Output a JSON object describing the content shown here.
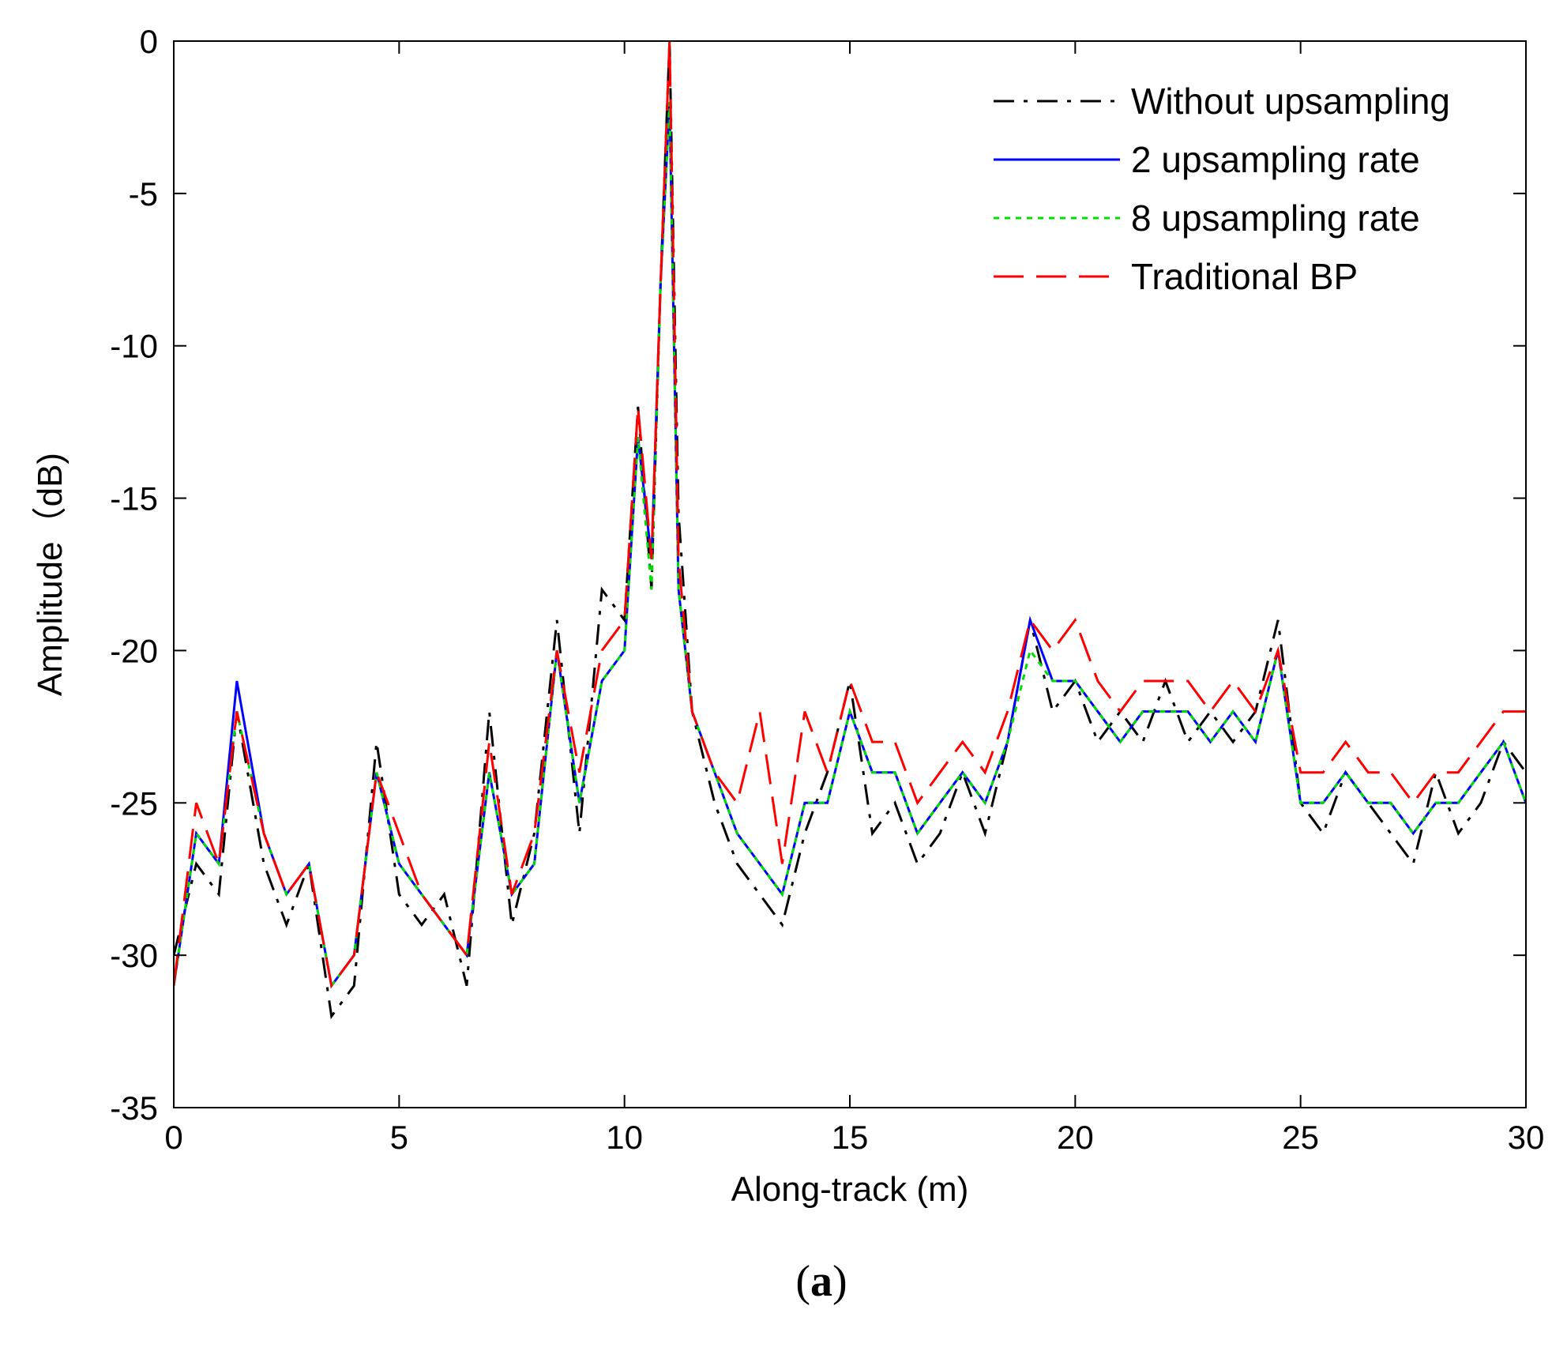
{
  "chart_data": {
    "type": "line",
    "xlabel": "Along-track (m)",
    "ylabel": "Amplitude（dB)",
    "xlim": [
      0,
      30
    ],
    "ylim": [
      -35,
      0
    ],
    "xticks": [
      "0",
      "5",
      "10",
      "15",
      "20",
      "25",
      "30"
    ],
    "yticks": [
      "0",
      "-5",
      "-10",
      "-15",
      "-20",
      "-25",
      "-30",
      "-35"
    ],
    "grid": false,
    "legend_position": "top-right",
    "peak": {
      "x": 11.0,
      "y": 0
    },
    "series": [
      {
        "name": "Without upsampling",
        "color": "#000000",
        "dash": "dash-dot",
        "x": [
          0,
          0.5,
          1,
          1.4,
          2,
          2.5,
          3,
          3.5,
          4,
          4.5,
          5,
          5.5,
          6,
          6.5,
          7,
          7.5,
          8,
          8.5,
          9,
          9.5,
          10,
          10.3,
          10.6,
          10.8,
          11,
          11.2,
          11.5,
          12,
          12.5,
          13,
          13.5,
          14,
          14.5,
          15,
          15.5,
          16,
          16.5,
          17,
          17.5,
          18,
          18.5,
          19,
          19.5,
          20,
          20.5,
          21,
          21.5,
          22,
          22.5,
          23,
          23.5,
          24,
          24.5,
          25,
          25.5,
          26,
          26.5,
          27,
          27.5,
          28,
          28.5,
          29,
          29.5,
          30
        ],
        "y": [
          -30,
          -27,
          -28,
          -22,
          -27,
          -29,
          -27,
          -32,
          -31,
          -23,
          -28,
          -29,
          -28,
          -31,
          -22,
          -29,
          -26,
          -19,
          -26,
          -18,
          -19,
          -12,
          -18,
          -8,
          0,
          -15.5,
          -22,
          -25,
          -27,
          -28,
          -29,
          -26,
          -24,
          -21,
          -26,
          -25,
          -27,
          -26,
          -24,
          -26,
          -23,
          -19,
          -22,
          -21,
          -23,
          -22,
          -23,
          -21,
          -23,
          -22,
          -23,
          -22,
          -19,
          -25,
          -26,
          -24,
          -25,
          -26,
          -27,
          -24,
          -26,
          -25,
          -23,
          -24
        ]
      },
      {
        "name": "2 upsampling rate",
        "color": "#0000ff",
        "dash": "solid",
        "x": [
          0,
          0.5,
          1,
          1.4,
          2,
          2.5,
          3,
          3.5,
          4,
          4.5,
          5,
          5.5,
          6,
          6.5,
          7,
          7.5,
          8,
          8.5,
          9,
          9.5,
          10,
          10.3,
          10.6,
          10.8,
          11,
          11.2,
          11.5,
          12,
          12.5,
          13,
          13.5,
          14,
          14.5,
          15,
          15.5,
          16,
          16.5,
          17,
          17.5,
          18,
          18.5,
          19,
          19.5,
          20,
          20.5,
          21,
          21.5,
          22,
          22.5,
          23,
          23.5,
          24,
          24.5,
          25,
          25.5,
          26,
          26.5,
          27,
          27.5,
          28,
          28.5,
          29,
          29.5,
          30
        ],
        "y": [
          -31,
          -26,
          -27,
          -21,
          -26,
          -28,
          -27,
          -31,
          -30,
          -24,
          -27,
          -28,
          -29,
          -30,
          -24,
          -28,
          -27,
          -20,
          -25,
          -21,
          -20,
          -13,
          -17,
          -8,
          -2,
          -18,
          -22,
          -24,
          -26,
          -27,
          -28,
          -25,
          -25,
          -22,
          -24,
          -24,
          -26,
          -25,
          -24,
          -25,
          -23,
          -19,
          -21,
          -21,
          -22,
          -23,
          -22,
          -22,
          -22,
          -23,
          -22,
          -23,
          -20,
          -25,
          -25,
          -24,
          -25,
          -25,
          -26,
          -25,
          -25,
          -24,
          -23,
          -25
        ]
      },
      {
        "name": "8 upsampling rate",
        "color": "#00dd00",
        "dash": "dotted",
        "x": [
          0,
          0.5,
          1,
          1.4,
          2,
          2.5,
          3,
          3.5,
          4,
          4.5,
          5,
          5.5,
          6,
          6.5,
          7,
          7.5,
          8,
          8.5,
          9,
          9.5,
          10,
          10.3,
          10.6,
          10.8,
          11,
          11.2,
          11.5,
          12,
          12.5,
          13,
          13.5,
          14,
          14.5,
          15,
          15.5,
          16,
          16.5,
          17,
          17.5,
          18,
          18.5,
          19,
          19.5,
          20,
          20.5,
          21,
          21.5,
          22,
          22.5,
          23,
          23.5,
          24,
          24.5,
          25,
          25.5,
          26,
          26.5,
          27,
          27.5,
          28,
          28.5,
          29,
          29.5,
          30
        ],
        "y": [
          -31,
          -26,
          -27,
          -22,
          -26,
          -28,
          -27,
          -31,
          -30,
          -24,
          -27,
          -28,
          -29,
          -30,
          -24,
          -28,
          -27,
          -20,
          -25,
          -21,
          -20,
          -13,
          -18,
          -8,
          -2,
          -18,
          -22,
          -24,
          -26,
          -27,
          -28,
          -25,
          -25,
          -22,
          -24,
          -24,
          -26,
          -25,
          -24,
          -25,
          -23,
          -20,
          -21,
          -21,
          -22,
          -23,
          -22,
          -22,
          -22,
          -23,
          -22,
          -23,
          -20,
          -25,
          -25,
          -24,
          -25,
          -25,
          -26,
          -25,
          -25,
          -24,
          -23,
          -25
        ]
      },
      {
        "name": "Traditional BP",
        "color": "#ff0000",
        "dash": "long-dash",
        "x": [
          0,
          0.5,
          1,
          1.4,
          2,
          2.5,
          3,
          3.5,
          4,
          4.5,
          5,
          5.5,
          6,
          6.5,
          7,
          7.5,
          8,
          8.5,
          9,
          9.5,
          10,
          10.3,
          10.6,
          10.8,
          11,
          11.2,
          11.5,
          12,
          12.5,
          13,
          13.5,
          14,
          14.5,
          15,
          15.5,
          16,
          16.5,
          17,
          17.5,
          18,
          18.5,
          19,
          19.5,
          20,
          20.5,
          21,
          21.5,
          22,
          22.5,
          23,
          23.5,
          24,
          24.5,
          25,
          25.5,
          26,
          26.5,
          27,
          27.5,
          28,
          28.5,
          29,
          29.5,
          30
        ],
        "y": [
          -31,
          -25,
          -27,
          -22,
          -26,
          -28,
          -27,
          -31,
          -30,
          -24,
          -26,
          -28,
          -29,
          -30,
          -23,
          -28,
          -26,
          -20,
          -24,
          -20,
          -19,
          -12,
          -17,
          -8,
          0,
          -17,
          -22,
          -24,
          -25,
          -22,
          -27,
          -22,
          -24,
          -21,
          -23,
          -23,
          -25,
          -24,
          -23,
          -24,
          -22,
          -19,
          -20,
          -19,
          -21,
          -22,
          -21,
          -21,
          -21,
          -22,
          -21,
          -22,
          -20,
          -24,
          -24,
          -23,
          -24,
          -24,
          -25,
          -24,
          -24,
          -23,
          -22,
          -22
        ]
      }
    ]
  },
  "caption": {
    "open": "(",
    "letter": "a",
    "close": ")"
  }
}
